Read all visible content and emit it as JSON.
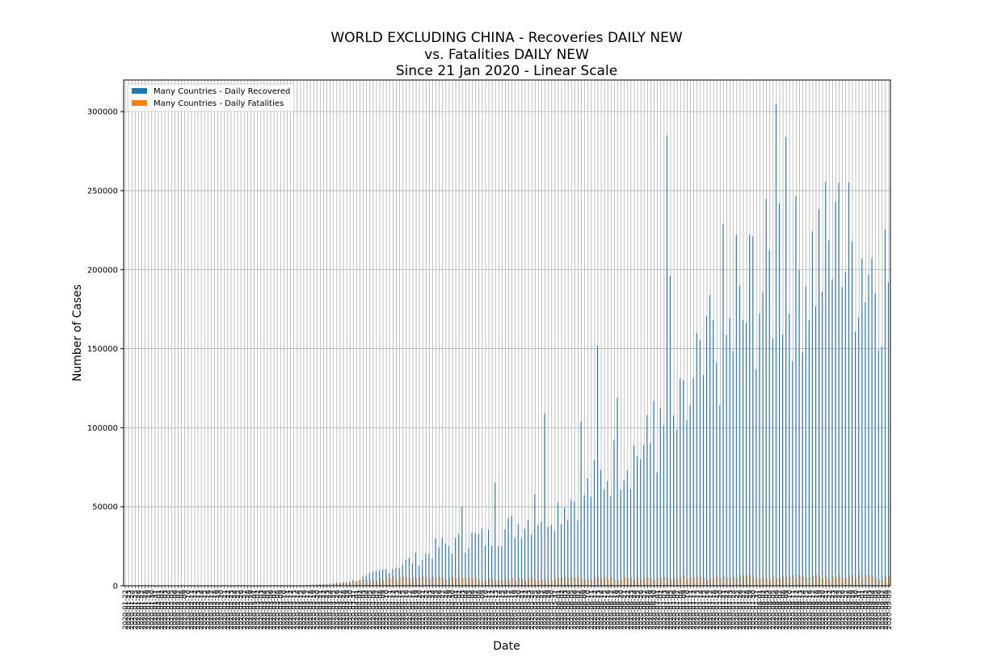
{
  "chart_data": {
    "type": "bar",
    "title_lines": [
      "WORLD EXCLUDING CHINA - Recoveries DAILY NEW",
      "vs. Fatalities DAILY NEW",
      "Since 21 Jan 2020 - Linear Scale"
    ],
    "xlabel": "Date",
    "ylabel": "Number of Cases",
    "ylim": [
      0,
      320000
    ],
    "yticks": [
      0,
      50000,
      100000,
      150000,
      200000,
      250000,
      300000
    ],
    "ytick_labels": [
      "0",
      "50000",
      "100000",
      "150000",
      "200000",
      "250000",
      "300000"
    ],
    "grid": true,
    "legend_position": "top-left",
    "x_start_date": "2020-01-22",
    "x_end_date": "2020-09-09",
    "series": [
      {
        "name": "Many Countries - Daily Recovered",
        "color": "#1f77b4",
        "anchors": [
          [
            0,
            0
          ],
          [
            30,
            20
          ],
          [
            45,
            100
          ],
          [
            50,
            300
          ],
          [
            55,
            500
          ],
          [
            60,
            1000
          ],
          [
            65,
            2000
          ],
          [
            70,
            3500
          ],
          [
            75,
            7000
          ],
          [
            80,
            11000
          ],
          [
            85,
            15000
          ],
          [
            90,
            18000
          ],
          [
            95,
            25000
          ],
          [
            100,
            26000
          ],
          [
            105,
            30000
          ],
          [
            110,
            30000
          ],
          [
            115,
            35000
          ],
          [
            120,
            40000
          ],
          [
            125,
            45000
          ],
          [
            130,
            48000
          ],
          [
            135,
            55000
          ],
          [
            140,
            60000
          ],
          [
            145,
            70000
          ],
          [
            150,
            80000
          ],
          [
            155,
            85000
          ],
          [
            160,
            90000
          ],
          [
            165,
            95000
          ],
          [
            170,
            110000
          ],
          [
            175,
            130000
          ],
          [
            180,
            150000
          ],
          [
            185,
            160000
          ],
          [
            190,
            180000
          ],
          [
            195,
            195000
          ],
          [
            200,
            190000
          ],
          [
            205,
            200000
          ],
          [
            210,
            210000
          ],
          [
            215,
            205000
          ],
          [
            220,
            210000
          ],
          [
            225,
            208000
          ],
          [
            232,
            195000
          ]
        ],
        "spikes": [
          [
            102,
            50000
          ],
          [
            112,
            65000
          ],
          [
            124,
            58000
          ],
          [
            127,
            109000
          ],
          [
            138,
            104000
          ],
          [
            143,
            152000
          ],
          [
            149,
            119000
          ],
          [
            160,
            117000
          ],
          [
            164,
            285000
          ],
          [
            165,
            196000
          ],
          [
            181,
            229000
          ],
          [
            185,
            222000
          ],
          [
            189,
            222000
          ],
          [
            190,
            221000
          ],
          [
            197,
            305000
          ],
          [
            198,
            242000
          ],
          [
            200,
            284000
          ],
          [
            216,
            255000
          ],
          [
            177,
            184000
          ],
          [
            173,
            160000
          ]
        ]
      },
      {
        "name": "Many Countries - Daily Fatalities",
        "color": "#ff7f0e",
        "anchors": [
          [
            0,
            0
          ],
          [
            40,
            10
          ],
          [
            50,
            100
          ],
          [
            55,
            300
          ],
          [
            60,
            700
          ],
          [
            65,
            1500
          ],
          [
            70,
            3000
          ],
          [
            75,
            4500
          ],
          [
            80,
            5000
          ],
          [
            85,
            5500
          ],
          [
            90,
            5000
          ],
          [
            100,
            4500
          ],
          [
            110,
            4000
          ],
          [
            120,
            4200
          ],
          [
            130,
            4500
          ],
          [
            140,
            4800
          ],
          [
            150,
            5000
          ],
          [
            160,
            5200
          ],
          [
            170,
            5500
          ],
          [
            180,
            5500
          ],
          [
            190,
            5500
          ],
          [
            200,
            5600
          ],
          [
            210,
            5500
          ],
          [
            220,
            5600
          ],
          [
            232,
            5200
          ]
        ],
        "spikes": []
      }
    ]
  }
}
